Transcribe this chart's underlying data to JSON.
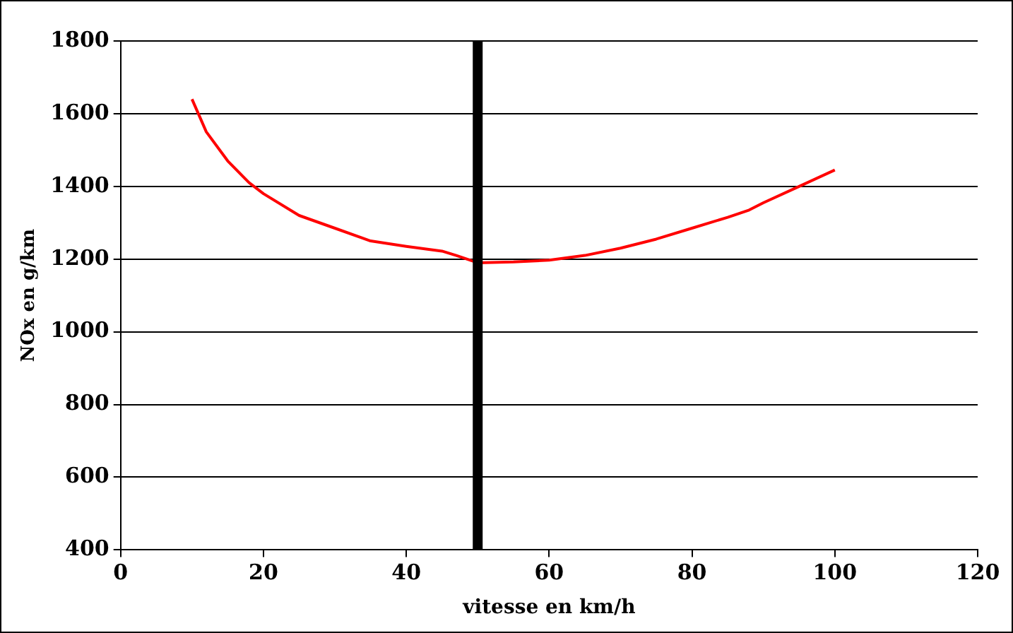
{
  "chart_data": {
    "type": "line",
    "xlabel": "vitesse en km/h",
    "ylabel": "NOx en g/km",
    "x": [
      10,
      12,
      15,
      18,
      20,
      25,
      30,
      35,
      40,
      45,
      47,
      50,
      55,
      60,
      65,
      70,
      75,
      80,
      85,
      88,
      90,
      95,
      100
    ],
    "series": [
      {
        "color": "#ff0000",
        "values": [
          1640,
          1550,
          1470,
          1410,
          1380,
          1320,
          1285,
          1250,
          1235,
          1222,
          1210,
          1190,
          1192,
          1197,
          1210,
          1230,
          1255,
          1285,
          1315,
          1335,
          1355,
          1400,
          1445
        ]
      }
    ],
    "xlim": [
      0,
      120
    ],
    "xticks": [
      0,
      20,
      40,
      60,
      80,
      100,
      120
    ],
    "ylim": [
      400,
      1800
    ],
    "yticks": [
      400,
      600,
      800,
      1000,
      1200,
      1400,
      1600,
      1800
    ],
    "grid": "y",
    "legend": false,
    "marker": "none",
    "line_style": "solid",
    "ref_lines": [
      {
        "axis": "x",
        "value": 50,
        "label": null,
        "color": "#000000"
      }
    ]
  }
}
